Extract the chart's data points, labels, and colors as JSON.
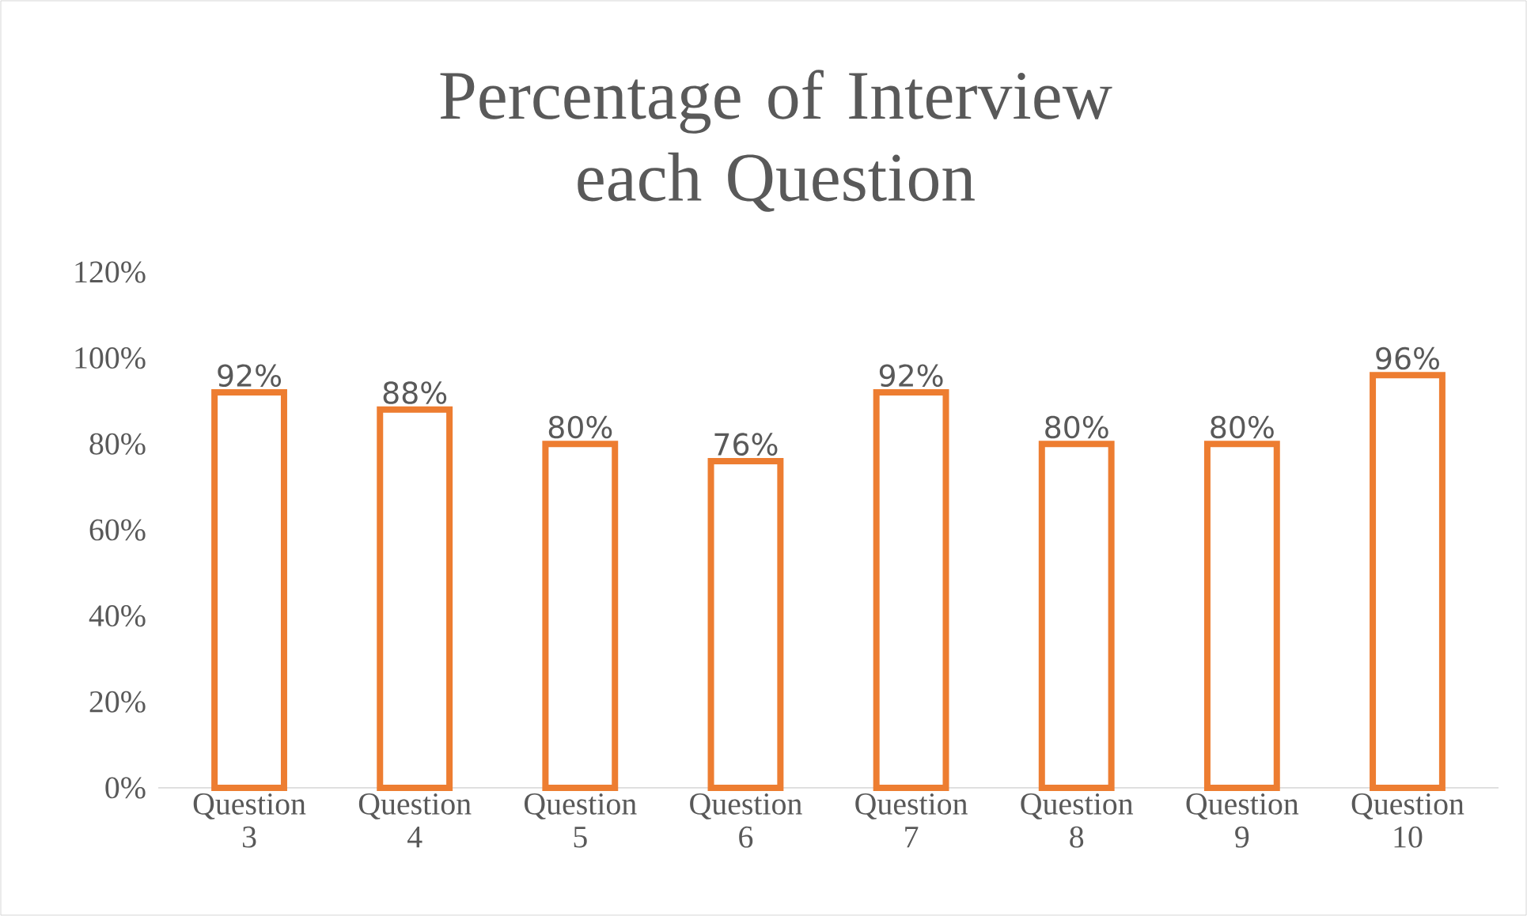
{
  "chart_data": {
    "type": "bar",
    "title": "Percentage of Interview each Question",
    "categories": [
      "Question 3",
      "Question 4",
      "Question 5",
      "Question 6",
      "Question 7",
      "Question 8",
      "Question 9",
      "Question 10"
    ],
    "values": [
      92,
      88,
      80,
      76,
      92,
      80,
      80,
      96
    ],
    "value_labels": [
      "92%",
      "88%",
      "80%",
      "76%",
      "92%",
      "80%",
      "80%",
      "96%"
    ],
    "color": "#ed7d31",
    "ylim": [
      0,
      120
    ],
    "yticks": [
      {
        "value": 0,
        "label": "0%"
      },
      {
        "value": 20,
        "label": "20%"
      },
      {
        "value": 40,
        "label": "40%"
      },
      {
        "value": 60,
        "label": "60%"
      },
      {
        "value": 80,
        "label": "80%"
      },
      {
        "value": 100,
        "label": "100%"
      },
      {
        "value": 120,
        "label": "120%"
      }
    ],
    "grid": false
  }
}
